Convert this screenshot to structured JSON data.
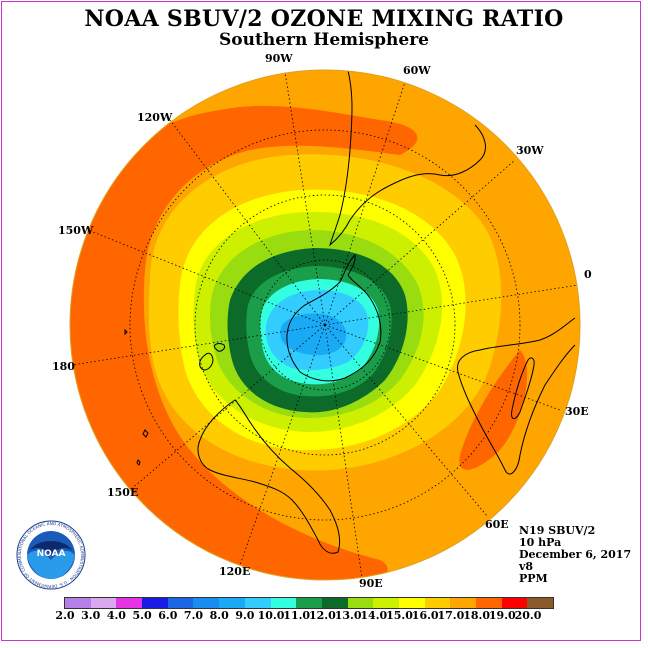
{
  "header": {
    "title": "NOAA SBUV/2 OZONE MIXING RATIO",
    "subtitle": "Southern Hemisphere"
  },
  "longitude_labels": {
    "l90w": "90W",
    "l60w": "60W",
    "l30w": "30W",
    "l120w": "120W",
    "l150w": "150W",
    "l0": "0",
    "l180": "180",
    "l30e": "30E",
    "l150e": "150E",
    "l60e": "60E",
    "l120e": "120E",
    "l90e": "90E"
  },
  "info": {
    "satellite": "N19 SBUV/2",
    "level": "10 hPa",
    "date": "December 6, 2017",
    "version": "v8",
    "units": "PPM"
  },
  "colorbar": {
    "ticks": [
      "2.0",
      "3.0",
      "4.0",
      "5.0",
      "6.0",
      "7.0",
      "8.0",
      "9.0",
      "10.0",
      "11.0",
      "12.0",
      "13.0",
      "14.0",
      "15.0",
      "16.0",
      "17.0",
      "18.0",
      "19.0",
      "20.0"
    ],
    "colors": [
      "#b57fe8",
      "#d9a9f0",
      "#e633e6",
      "#1a1ae6",
      "#1a66e6",
      "#1a8cf0",
      "#1aaaf5",
      "#33ccff",
      "#33ffe0",
      "#1a9e4a",
      "#0d6b2a",
      "#99dd11",
      "#ccf000",
      "#ffff00",
      "#ffcc00",
      "#ffa500",
      "#ff6600",
      "#ff0000",
      "#8b5a2b"
    ]
  },
  "logo": {
    "text": "NOAA",
    "ring_text": "NATIONAL OCEANIC AND ATMOSPHERIC ADMINISTRATION · U.S. DEPARTMENT OF COMMERCE"
  },
  "colors": {
    "frame": "#cc33cc",
    "outer": "#ffa500",
    "band17": "#ff6600"
  }
}
